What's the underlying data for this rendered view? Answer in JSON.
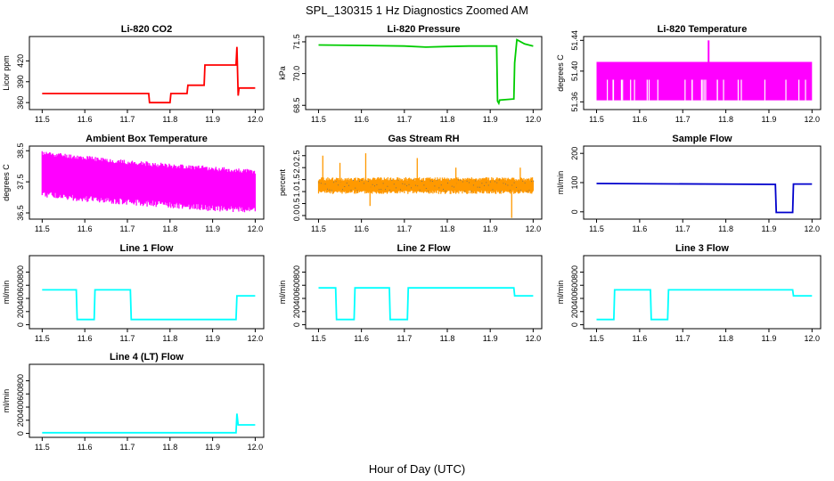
{
  "figure": {
    "title": "SPL_130315  1 Hz Diagnostics Zoomed AM",
    "xlabel": "Hour of Day (UTC)"
  },
  "chart_data": [
    {
      "type": "line",
      "title": "Li-820 CO2",
      "ylabel": "Licor ppm",
      "color": "#ff0000",
      "xlim": [
        11.47,
        12.02
      ],
      "ylim": [
        350,
        455
      ],
      "xticks": [
        11.5,
        11.6,
        11.7,
        11.8,
        11.9,
        12.0
      ],
      "xtick_labels": [
        "11.5",
        "11.6",
        "11.7",
        "11.8",
        "11.9",
        "12.0"
      ],
      "yticks": [
        360,
        390,
        420
      ],
      "ytick_labels": [
        "360",
        "390",
        "420"
      ],
      "series": [
        {
          "style": "steps",
          "x": [
            11.5,
            11.75,
            11.752,
            11.8,
            11.802,
            11.84,
            11.842,
            11.88,
            11.882,
            11.955,
            11.957,
            11.96,
            11.962,
            12.0
          ],
          "y": [
            373,
            373,
            360,
            360,
            373,
            373,
            385,
            385,
            414,
            414,
            440,
            370,
            381,
            381
          ]
        }
      ]
    },
    {
      "type": "line",
      "title": "Li-820 Pressure",
      "ylabel": "kPa",
      "color": "#00cc00",
      "xlim": [
        11.47,
        12.02
      ],
      "ylim": [
        68.3,
        71.75
      ],
      "xticks": [
        11.5,
        11.6,
        11.7,
        11.8,
        11.9,
        12.0
      ],
      "xtick_labels": [
        "11.5",
        "11.6",
        "11.7",
        "11.8",
        "11.9",
        "12.0"
      ],
      "yticks": [
        68.5,
        70.0,
        71.5
      ],
      "ytick_labels": [
        "68.5",
        "70.0",
        "71.5"
      ],
      "series": [
        {
          "style": "steps",
          "x": [
            11.5,
            11.6,
            11.7,
            11.75,
            11.8,
            11.85,
            11.9,
            11.915,
            11.917,
            11.92,
            11.922,
            11.955,
            11.957,
            11.962,
            11.98,
            12.0
          ],
          "y": [
            71.35,
            71.33,
            71.3,
            71.25,
            71.28,
            71.3,
            71.3,
            71.3,
            68.7,
            68.6,
            68.75,
            68.8,
            70.5,
            71.6,
            71.4,
            71.3
          ]
        }
      ]
    },
    {
      "type": "area",
      "title": "Li-820 Temperature",
      "ylabel": "degrees C",
      "color": "#ff00ff",
      "xlim": [
        11.47,
        12.02
      ],
      "ylim": [
        51.35,
        51.445
      ],
      "xticks": [
        11.5,
        11.6,
        11.7,
        11.8,
        11.9,
        12.0
      ],
      "xtick_labels": [
        "11.5",
        "11.6",
        "11.7",
        "11.8",
        "11.9",
        "12.0"
      ],
      "yticks": [
        51.36,
        51.4,
        51.44
      ],
      "ytick_labels": [
        "51.36",
        "51.40",
        "51.44"
      ],
      "band": {
        "x": [
          11.5,
          12.0
        ],
        "low": 51.362,
        "high": 51.412
      },
      "spike": {
        "x": 11.76,
        "y": 51.44
      }
    },
    {
      "type": "area",
      "title": "Ambient Box Temperature",
      "ylabel": "degrees C",
      "color": "#ff00ff",
      "xlim": [
        11.47,
        12.02
      ],
      "ylim": [
        36.3,
        38.65
      ],
      "xticks": [
        11.5,
        11.6,
        11.7,
        11.8,
        11.9,
        12.0
      ],
      "xtick_labels": [
        "11.5",
        "11.6",
        "11.7",
        "11.8",
        "11.9",
        "12.0"
      ],
      "yticks": [
        36.5,
        37.5,
        38.5
      ],
      "ytick_labels": [
        "36.5",
        "37.5",
        "38.5"
      ],
      "band_series": {
        "x": [
          11.5,
          11.6,
          11.7,
          11.8,
          11.9,
          12.0
        ],
        "low": [
          37.2,
          37.05,
          36.95,
          36.85,
          36.75,
          36.7
        ],
        "high": [
          38.35,
          38.2,
          38.05,
          37.95,
          37.85,
          37.75
        ]
      }
    },
    {
      "type": "area",
      "title": "Gas Stream RH",
      "ylabel": "percent",
      "color": "#ff9900",
      "color2": "#666666",
      "xlim": [
        11.47,
        12.02
      ],
      "ylim": [
        -0.15,
        2.9
      ],
      "xticks": [
        11.5,
        11.6,
        11.7,
        11.8,
        11.9,
        12.0
      ],
      "xtick_labels": [
        "11.5",
        "11.6",
        "11.7",
        "11.8",
        "11.9",
        "12.0"
      ],
      "yticks": [
        0.0,
        0.5,
        1.0,
        1.5,
        2.0,
        2.5
      ],
      "ytick_labels": [
        "0.0",
        "0.5",
        "1.0",
        "1.5",
        "2.0",
        "2.5"
      ],
      "band": {
        "x": [
          11.5,
          12.0
        ],
        "low": 0.9,
        "high": 1.6
      },
      "spikes": [
        {
          "x": 11.51,
          "y": 2.5
        },
        {
          "x": 11.55,
          "y": 2.2
        },
        {
          "x": 11.61,
          "y": 2.6
        },
        {
          "x": 11.62,
          "y": 0.4
        },
        {
          "x": 11.73,
          "y": 2.4
        },
        {
          "x": 11.82,
          "y": 2.0
        },
        {
          "x": 11.95,
          "y": -0.1
        },
        {
          "x": 11.97,
          "y": 2.0
        }
      ]
    },
    {
      "type": "line",
      "title": "Sample Flow",
      "ylabel": "ml/min",
      "color": "#0000cc",
      "xlim": [
        11.47,
        12.02
      ],
      "ylim": [
        -25,
        225
      ],
      "xticks": [
        11.5,
        11.6,
        11.7,
        11.8,
        11.9,
        12.0
      ],
      "xtick_labels": [
        "11.5",
        "11.6",
        "11.7",
        "11.8",
        "11.9",
        "12.0"
      ],
      "yticks": [
        0,
        100,
        200
      ],
      "ytick_labels": [
        "0",
        "100",
        "200"
      ],
      "series": [
        {
          "style": "steps",
          "x": [
            11.5,
            11.915,
            11.917,
            11.955,
            11.957,
            12.0
          ],
          "y": [
            97,
            94,
            -2,
            -2,
            95,
            95
          ]
        }
      ]
    },
    {
      "type": "line",
      "title": "Line 1 Flow",
      "ylabel": "ml/min",
      "color": "#00ffff",
      "xlim": [
        11.47,
        12.02
      ],
      "ylim": [
        -60,
        1050
      ],
      "xticks": [
        11.5,
        11.6,
        11.7,
        11.8,
        11.9,
        12.0
      ],
      "xtick_labels": [
        "11.5",
        "11.6",
        "11.7",
        "11.8",
        "11.9",
        "12.0"
      ],
      "yticks": [
        0,
        200,
        400,
        600,
        800
      ],
      "ytick_labels": [
        "0",
        "200",
        "400",
        "600",
        "800"
      ],
      "series": [
        {
          "style": "steps",
          "x": [
            11.5,
            11.58,
            11.582,
            11.622,
            11.624,
            11.707,
            11.709,
            11.955,
            11.957,
            12.0
          ],
          "y": [
            530,
            530,
            80,
            80,
            530,
            530,
            80,
            80,
            440,
            440
          ]
        }
      ]
    },
    {
      "type": "line",
      "title": "Line 2 Flow",
      "ylabel": "ml/min",
      "color": "#00ffff",
      "xlim": [
        11.47,
        12.02
      ],
      "ylim": [
        -60,
        1050
      ],
      "xticks": [
        11.5,
        11.6,
        11.7,
        11.8,
        11.9,
        12.0
      ],
      "xtick_labels": [
        "11.5",
        "11.6",
        "11.7",
        "11.8",
        "11.9",
        "12.0"
      ],
      "yticks": [
        0,
        200,
        400,
        600,
        800
      ],
      "ytick_labels": [
        "0",
        "200",
        "400",
        "600",
        "800"
      ],
      "series": [
        {
          "style": "steps",
          "x": [
            11.5,
            11.54,
            11.542,
            11.583,
            11.585,
            11.665,
            11.667,
            11.707,
            11.709,
            11.955,
            11.957,
            12.0
          ],
          "y": [
            560,
            560,
            80,
            80,
            560,
            560,
            80,
            80,
            560,
            560,
            440,
            440
          ]
        }
      ]
    },
    {
      "type": "line",
      "title": "Line 3 Flow",
      "ylabel": "ml/min",
      "color": "#00ffff",
      "xlim": [
        11.47,
        12.02
      ],
      "ylim": [
        -60,
        1050
      ],
      "xticks": [
        11.5,
        11.6,
        11.7,
        11.8,
        11.9,
        12.0
      ],
      "xtick_labels": [
        "11.5",
        "11.6",
        "11.7",
        "11.8",
        "11.9",
        "12.0"
      ],
      "yticks": [
        0,
        200,
        400,
        600,
        800
      ],
      "ytick_labels": [
        "0",
        "200",
        "400",
        "600",
        "800"
      ],
      "series": [
        {
          "style": "steps",
          "x": [
            11.5,
            11.54,
            11.542,
            11.625,
            11.627,
            11.665,
            11.667,
            11.955,
            11.957,
            12.0
          ],
          "y": [
            80,
            80,
            530,
            530,
            80,
            80,
            530,
            530,
            440,
            440
          ]
        }
      ]
    },
    {
      "type": "line",
      "title": "Line 4 (LT) Flow",
      "ylabel": "ml/min",
      "color": "#00ffff",
      "xlim": [
        11.47,
        12.02
      ],
      "ylim": [
        -60,
        1050
      ],
      "xticks": [
        11.5,
        11.6,
        11.7,
        11.8,
        11.9,
        12.0
      ],
      "xtick_labels": [
        "11.5",
        "11.6",
        "11.7",
        "11.8",
        "11.9",
        "12.0"
      ],
      "yticks": [
        0,
        200,
        400,
        600,
        800
      ],
      "ytick_labels": [
        "0",
        "200",
        "400",
        "600",
        "800"
      ],
      "series": [
        {
          "style": "steps",
          "x": [
            11.5,
            11.955,
            11.957,
            11.96,
            11.962,
            12.0
          ],
          "y": [
            10,
            10,
            300,
            130,
            130,
            130
          ]
        }
      ]
    }
  ]
}
